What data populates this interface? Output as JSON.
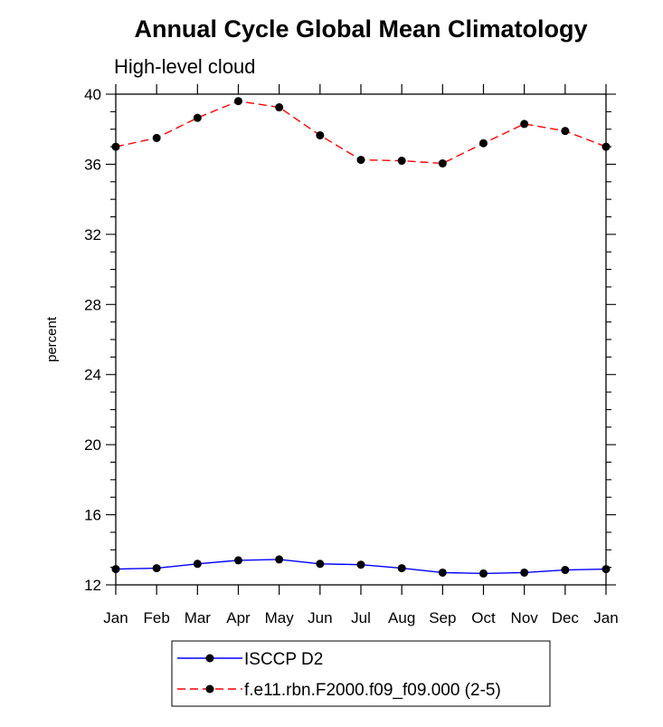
{
  "chart_data": {
    "type": "line",
    "title": "Annual Cycle Global Mean Climatology",
    "subtitle": "High-level cloud",
    "xlabel": "",
    "ylabel": "percent",
    "categories": [
      "Jan",
      "Feb",
      "Mar",
      "Apr",
      "May",
      "Jun",
      "Jul",
      "Aug",
      "Sep",
      "Oct",
      "Nov",
      "Dec",
      "Jan"
    ],
    "ylim": [
      12,
      40
    ],
    "yticks": [
      "12",
      "16",
      "20",
      "24",
      "28",
      "32",
      "36",
      "40"
    ],
    "series": [
      {
        "name": "ISCCP D2",
        "color": "#0000ff",
        "dash": "solid",
        "values": [
          12.9,
          12.95,
          13.2,
          13.4,
          13.45,
          13.2,
          13.15,
          12.95,
          12.7,
          12.65,
          12.7,
          12.85,
          12.9
        ]
      },
      {
        "name": "f.e11.rbn.F2000.f09_f09.000 (2-5)",
        "color": "#ff0000",
        "dash": "dashed",
        "values": [
          37.0,
          37.5,
          38.65,
          39.6,
          39.25,
          37.65,
          36.25,
          36.2,
          36.05,
          37.2,
          38.3,
          37.9,
          37.0
        ]
      }
    ],
    "legend_position": "bottom-center",
    "grid": false
  }
}
